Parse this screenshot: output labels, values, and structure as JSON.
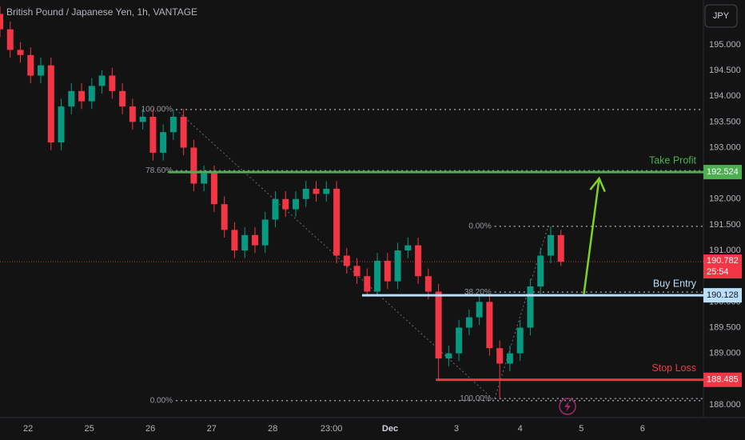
{
  "header": {
    "title": "British Pound / Japanese Yen, 1h, VANTAGE",
    "currency": "JPY"
  },
  "chart_data": {
    "type": "candlestick",
    "x": [
      -11,
      -7,
      -3,
      1,
      5,
      9,
      13,
      17,
      21,
      25,
      29,
      33,
      37,
      41,
      45,
      49,
      53,
      57,
      61,
      65,
      69,
      73,
      77,
      81,
      85,
      89,
      93,
      97,
      101,
      105,
      109,
      113,
      117,
      121,
      125,
      129,
      133,
      137,
      141,
      145,
      149,
      153,
      157,
      161,
      165,
      169,
      173,
      177,
      181,
      185,
      189,
      193,
      197,
      201,
      205,
      209
    ],
    "open": [
      195.6,
      195.3,
      194.9,
      194.8,
      194.4,
      194.6,
      193.1,
      193.8,
      194.1,
      193.9,
      194.2,
      194.4,
      194.1,
      193.8,
      193.5,
      193.6,
      192.9,
      193.3,
      193.6,
      193.0,
      192.3,
      192.5,
      191.9,
      191.4,
      191.0,
      191.3,
      191.1,
      191.6,
      192.0,
      191.8,
      192.0,
      192.2,
      192.1,
      192.2,
      190.9,
      190.7,
      190.5,
      190.2,
      190.8,
      190.4,
      191.0,
      191.1,
      190.5,
      190.2,
      188.9,
      189.0,
      189.5,
      189.7,
      190.0,
      189.1,
      188.8,
      189.0,
      189.5,
      190.3,
      190.9,
      191.3
    ],
    "high": [
      195.75,
      195.45,
      195.05,
      194.95,
      194.75,
      194.75,
      193.95,
      194.25,
      194.25,
      194.35,
      194.5,
      194.55,
      194.25,
      193.95,
      193.75,
      193.75,
      193.45,
      193.74,
      193.75,
      193.15,
      192.65,
      192.65,
      192.05,
      191.55,
      191.45,
      191.45,
      191.75,
      192.15,
      192.15,
      192.15,
      192.35,
      192.35,
      192.35,
      192.35,
      191.05,
      190.85,
      190.65,
      190.95,
      190.95,
      191.15,
      191.25,
      191.25,
      190.65,
      190.35,
      189.15,
      189.65,
      189.85,
      190.15,
      190.15,
      189.25,
      189.15,
      189.65,
      190.45,
      191.05,
      191.47,
      191.4
    ],
    "low": [
      195.15,
      194.75,
      194.65,
      194.25,
      194.25,
      192.95,
      192.95,
      193.65,
      193.75,
      193.75,
      194.05,
      193.95,
      193.65,
      193.35,
      193.35,
      192.75,
      192.75,
      193.15,
      192.85,
      192.15,
      192.15,
      191.75,
      191.25,
      190.85,
      190.85,
      190.95,
      190.95,
      191.45,
      191.65,
      191.65,
      191.85,
      191.95,
      191.95,
      190.75,
      190.55,
      190.35,
      190.1,
      190.1,
      190.25,
      190.25,
      190.85,
      190.35,
      190.05,
      188.5,
      188.75,
      188.85,
      189.35,
      189.55,
      188.95,
      188.12,
      188.65,
      188.85,
      189.35,
      190.15,
      190.75,
      190.7
    ],
    "close": [
      195.3,
      194.9,
      194.8,
      194.4,
      194.6,
      193.1,
      193.8,
      194.1,
      193.9,
      194.2,
      194.4,
      194.1,
      193.8,
      193.5,
      193.6,
      192.9,
      193.3,
      193.6,
      193.0,
      192.3,
      192.5,
      191.9,
      191.4,
      191.0,
      191.3,
      191.1,
      191.6,
      192.0,
      191.8,
      192.0,
      192.2,
      192.1,
      192.2,
      190.9,
      190.7,
      190.5,
      190.2,
      190.8,
      190.4,
      191.0,
      191.1,
      190.5,
      190.2,
      188.9,
      189.0,
      189.5,
      189.7,
      190.0,
      189.1,
      188.8,
      189.0,
      189.5,
      190.3,
      190.9,
      191.3,
      190.78
    ],
    "up_color": "#089981",
    "down_color": "#f23645",
    "xlim": [
      -11,
      264.9
    ],
    "ylim": [
      187.75,
      195.87
    ],
    "grid": false,
    "xticks": [
      {
        "value": 0,
        "label": "22"
      },
      {
        "value": 24,
        "label": "25"
      },
      {
        "value": 48,
        "label": "26"
      },
      {
        "value": 72,
        "label": "27"
      },
      {
        "value": 96,
        "label": "28"
      },
      {
        "value": 119,
        "label": "23:00"
      },
      {
        "value": 142,
        "label": "Dec"
      },
      {
        "value": 168,
        "label": "3"
      },
      {
        "value": 193,
        "label": "4"
      },
      {
        "value": 217,
        "label": "5"
      },
      {
        "value": 241,
        "label": "6"
      }
    ],
    "yticks": [
      {
        "value": 188,
        "label": "188.000"
      },
      {
        "value": 188.5,
        "label": "188.500"
      },
      {
        "value": 189,
        "label": "189.000"
      },
      {
        "value": 189.5,
        "label": "189.500"
      },
      {
        "value": 190,
        "label": "190.000"
      },
      {
        "value": 190.5,
        "label": "190.500"
      },
      {
        "value": 191,
        "label": "191.000"
      },
      {
        "value": 191.5,
        "label": "191.500"
      },
      {
        "value": 192,
        "label": "192.000"
      },
      {
        "value": 192.5,
        "label": "192.500"
      },
      {
        "value": 193,
        "label": "193.000"
      },
      {
        "value": 193.5,
        "label": "193.500"
      },
      {
        "value": 194,
        "label": "194.000"
      },
      {
        "value": 194.5,
        "label": "194.500"
      },
      {
        "value": 195,
        "label": "195.000"
      }
    ],
    "last_price": {
      "value": 190.782,
      "countdown": "25:54",
      "color": "#f23645"
    },
    "levels": [
      {
        "name": "Take Profit",
        "value": 192.524,
        "x0": 55,
        "color": "#4caf50",
        "text_color": "#ffffff"
      },
      {
        "name": "Buy Entry",
        "value": 190.128,
        "x0": 131,
        "color": "#bbdefb",
        "text_color": "#131722"
      },
      {
        "name": "Stop Loss",
        "value": 188.485,
        "x0": 160,
        "color": "#f23645",
        "text_color": "#ffffff"
      }
    ],
    "fibs": [
      {
        "from": {
          "x": 58,
          "value": 193.74
        },
        "to": {
          "x": 183,
          "value": 188.08
        },
        "levels": [
          {
            "value": 193.74,
            "label": "100.00%"
          },
          {
            "value": 192.55,
            "label": "78.60%"
          },
          {
            "value": 188.08,
            "label": "0.00%"
          }
        ]
      },
      {
        "from": {
          "x": 183,
          "value": 188.12
        },
        "to": {
          "x": 204,
          "value": 191.47
        },
        "levels": [
          {
            "value": 191.47,
            "label": "0.00%"
          },
          {
            "value": 190.19,
            "label": "38.20%"
          },
          {
            "value": 188.12,
            "label": "100.00%"
          }
        ]
      }
    ],
    "arrow": {
      "color": "#7ed321",
      "from": {
        "x": 218,
        "value": 190.15
      },
      "to": {
        "x": 224,
        "value": 192.4
      }
    }
  }
}
